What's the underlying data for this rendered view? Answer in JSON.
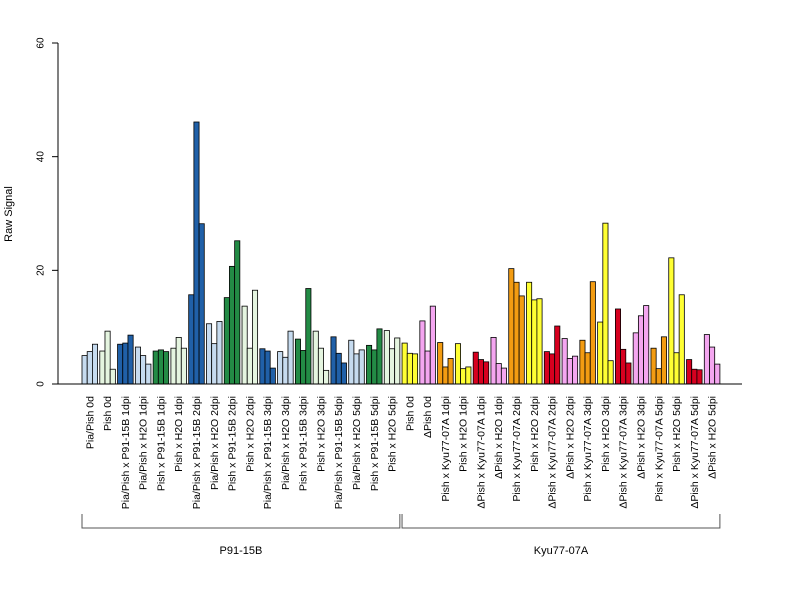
{
  "chart_data": {
    "type": "bar",
    "ylabel": "Raw Signal",
    "xlabel": "",
    "ylim": [
      0,
      60
    ],
    "yticks": [
      0,
      20,
      40,
      60
    ],
    "grid": false,
    "legend": "none",
    "colors": {
      "lightblue": "#c6dbef",
      "lightgreen": "#e5f5e0",
      "darkblue": "#2060a8",
      "darkgreen": "#238b45",
      "yellow": "#ffff33",
      "pink": "#f4a6f0",
      "orange": "#f39c12",
      "red": "#d7001f"
    },
    "categories": [
      {
        "label": "Pia/Pish 0d",
        "color": "lightblue",
        "values": [
          5.0,
          5.7,
          7.0
        ]
      },
      {
        "label": "Pish 0d",
        "color": "lightgreen",
        "values": [
          5.8,
          9.3,
          2.6
        ]
      },
      {
        "label": "Pia/Pish x P91-15B 1dpi",
        "color": "darkblue",
        "values": [
          7.0,
          7.2,
          8.6
        ]
      },
      {
        "label": "Pia/Pish x H2O 1dpi",
        "color": "lightblue",
        "values": [
          6.5,
          5.0,
          3.5
        ]
      },
      {
        "label": "Pish x P91-15B 1dpi",
        "color": "darkgreen",
        "values": [
          5.8,
          6.0,
          5.7
        ]
      },
      {
        "label": "Pish x H2O 1dpi",
        "color": "lightgreen",
        "values": [
          6.3,
          8.2,
          6.3
        ]
      },
      {
        "label": "Pia/Pish x P91-15B 2dpi",
        "color": "darkblue",
        "values": [
          15.7,
          46.1,
          28.2
        ]
      },
      {
        "label": "Pia/Pish x H2O 2dpi",
        "color": "lightblue",
        "values": [
          10.6,
          7.1,
          11.0
        ]
      },
      {
        "label": "Pish x P91-15B 2dpi",
        "color": "darkgreen",
        "values": [
          15.2,
          20.7,
          25.2
        ]
      },
      {
        "label": "Pish x H2O 2dpi",
        "color": "lightgreen",
        "values": [
          13.7,
          6.3,
          16.5
        ]
      },
      {
        "label": "Pia/Pish x P91-15B 3dpi",
        "color": "darkblue",
        "values": [
          6.2,
          5.8,
          2.8
        ]
      },
      {
        "label": "Pia/Pish x H2O 3dpi",
        "color": "lightblue",
        "values": [
          5.7,
          4.7,
          9.3
        ]
      },
      {
        "label": "Pish x P91-15B 3dpi",
        "color": "darkgreen",
        "values": [
          7.9,
          5.9,
          16.8
        ]
      },
      {
        "label": "Pish x H2O 3dpi",
        "color": "lightgreen",
        "values": [
          9.3,
          6.3,
          2.4
        ]
      },
      {
        "label": "Pia/Pish x P91-15B 5dpi",
        "color": "darkblue",
        "values": [
          8.3,
          5.4,
          3.7
        ]
      },
      {
        "label": "Pia/Pish x H2O 5dpi",
        "color": "lightblue",
        "values": [
          7.7,
          5.3,
          6.0
        ]
      },
      {
        "label": "Pish x P91-15B 5dpi",
        "color": "darkgreen",
        "values": [
          6.8,
          6.0,
          9.7
        ]
      },
      {
        "label": "Pish x H2O 5dpi",
        "color": "lightgreen",
        "values": [
          9.4,
          6.2,
          8.1
        ]
      },
      {
        "label": "Pish 0d",
        "color": "yellow",
        "values": [
          7.2,
          5.4,
          5.3
        ]
      },
      {
        "label": "ΔPish 0d",
        "color": "pink",
        "values": [
          11.1,
          5.8,
          13.7
        ]
      },
      {
        "label": "Pish x Kyu77-07A 1dpi",
        "color": "orange",
        "values": [
          7.3,
          3.0,
          4.5
        ]
      },
      {
        "label": "Pish x H2O 1dpi",
        "color": "yellow",
        "values": [
          7.1,
          2.7,
          3.0
        ]
      },
      {
        "label": "ΔPish x Kyu77-07A 1dpi",
        "color": "red",
        "values": [
          5.6,
          4.3,
          3.9
        ]
      },
      {
        "label": "ΔPish x H2O 1dpi",
        "color": "pink",
        "values": [
          8.2,
          3.6,
          2.8
        ]
      },
      {
        "label": "Pish x Kyu77-07A 2dpi",
        "color": "orange",
        "values": [
          20.3,
          17.9,
          15.5
        ]
      },
      {
        "label": "Pish x H2O 2dpi",
        "color": "yellow",
        "values": [
          17.9,
          14.8,
          15.0
        ]
      },
      {
        "label": "ΔPish x Kyu77-07A 2dpi",
        "color": "red",
        "values": [
          5.7,
          5.3,
          10.2
        ]
      },
      {
        "label": "ΔPish x H2O 2dpi",
        "color": "pink",
        "values": [
          8.0,
          4.5,
          4.9
        ]
      },
      {
        "label": "Pish x Kyu77-07A 3dpi",
        "color": "orange",
        "values": [
          7.7,
          5.5,
          18.0
        ]
      },
      {
        "label": "Pish x H2O 3dpi",
        "color": "yellow",
        "values": [
          10.9,
          28.3,
          4.1
        ]
      },
      {
        "label": "ΔPish x Kyu77-07A 3dpi",
        "color": "red",
        "values": [
          13.2,
          6.1,
          3.7
        ]
      },
      {
        "label": "ΔPish x H2O 3dpi",
        "color": "pink",
        "values": [
          9.0,
          12.0,
          13.8
        ]
      },
      {
        "label": "Pish x Kyu77-07A 5dpi",
        "color": "orange",
        "values": [
          6.3,
          2.7,
          8.3
        ]
      },
      {
        "label": "Pish x H2O 5dpi",
        "color": "yellow",
        "values": [
          22.2,
          5.5,
          15.7
        ]
      },
      {
        "label": "ΔPish x Kyu77-07A 5dpi",
        "color": "red",
        "values": [
          4.3,
          2.6,
          2.5
        ]
      },
      {
        "label": "ΔPish x H2O 5dpi",
        "color": "pink",
        "values": [
          8.7,
          6.5,
          3.5
        ]
      }
    ],
    "groups": [
      {
        "label": "P91-15B",
        "from": 0,
        "to": 17
      },
      {
        "label": "Kyu77-07A",
        "from": 18,
        "to": 35
      }
    ]
  }
}
